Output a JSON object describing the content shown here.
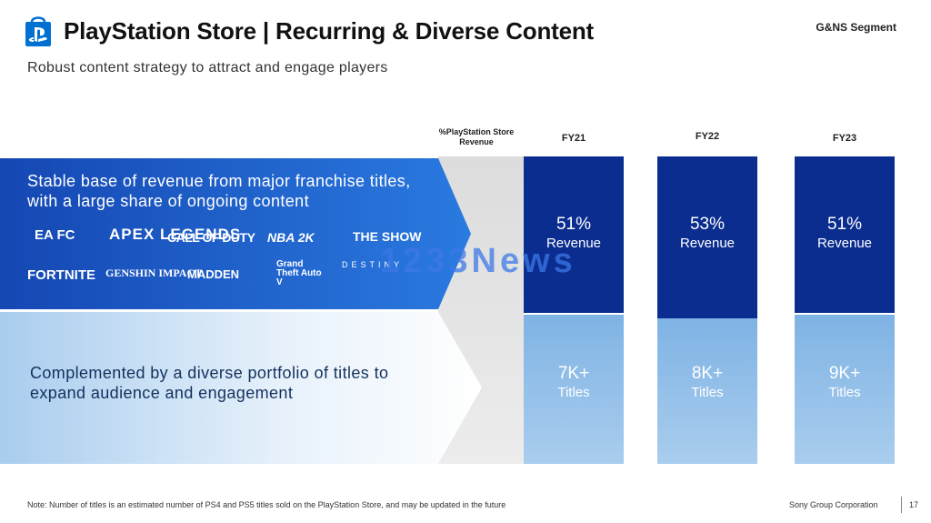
{
  "header": {
    "logo_icon": "playstation-store-bag-icon",
    "title": "PlayStation Store | Recurring & Diverse Content",
    "segment": "G&NS Segment",
    "subtitle": "Robust content strategy to attract and engage players"
  },
  "table": {
    "pct_header": "%PlayStation Store Revenue",
    "top_text": "Stable base of revenue from major franchise titles, with a large share of ongoing content",
    "bottom_text": "Complemented by a diverse portfolio of titles to expand audience and engagement",
    "franchise_logos": [
      "EA FC",
      "APEX LEGENDS",
      "CALL OF DUTY",
      "NBA 2K",
      "THE SHOW",
      "FORTNITE",
      "GENSHIN IMPACT",
      "MADDEN",
      "Grand Theft Auto V",
      "DESTINY"
    ],
    "columns": [
      {
        "year": "FY21",
        "revenue_value": "51%",
        "revenue_label": "Revenue",
        "titles_value": "7K+",
        "titles_label": "Titles"
      },
      {
        "year": "FY22",
        "revenue_value": "53%",
        "revenue_label": "Revenue",
        "titles_value": "8K+",
        "titles_label": "Titles"
      },
      {
        "year": "FY23",
        "revenue_value": "51%",
        "revenue_label": "Revenue",
        "titles_value": "9K+",
        "titles_label": "Titles"
      }
    ]
  },
  "watermark": "1233News",
  "footer": {
    "note": "Note: Number of titles is an estimated number of PS4 and PS5 titles sold on the PlayStation Store, and may be updated in the future",
    "company": "Sony Group Corporation",
    "page": "17"
  },
  "colors": {
    "dark_blue": "#0a2d8f",
    "band_blue": "#1a55c4",
    "light_blue": "#8dbbe8"
  }
}
